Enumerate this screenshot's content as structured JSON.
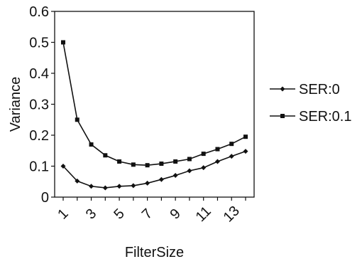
{
  "chart_data": {
    "type": "line",
    "x": [
      1,
      2,
      3,
      4,
      5,
      6,
      7,
      8,
      9,
      10,
      11,
      12,
      13,
      14
    ],
    "x_tick_labels": [
      "1",
      "3",
      "5",
      "7",
      "9",
      "11",
      "13"
    ],
    "y_tick_labels": [
      "0",
      "0.1",
      "0.2",
      "0.3",
      "0.4",
      "0.5",
      "0.6"
    ],
    "ylim": [
      0,
      0.6
    ],
    "xlabel": "FilterSize",
    "ylabel": "Variance",
    "legend_position": "right",
    "grid": false,
    "series": [
      {
        "name": "SER:0",
        "marker": "diamond",
        "color": "#111111",
        "values": [
          0.1,
          0.052,
          0.035,
          0.03,
          0.035,
          0.037,
          0.045,
          0.057,
          0.07,
          0.085,
          0.095,
          0.115,
          0.132,
          0.148
        ]
      },
      {
        "name": "SER:0.1",
        "marker": "square",
        "color": "#111111",
        "values": [
          0.5,
          0.25,
          0.17,
          0.135,
          0.115,
          0.105,
          0.103,
          0.108,
          0.115,
          0.123,
          0.14,
          0.155,
          0.172,
          0.195
        ]
      }
    ]
  }
}
